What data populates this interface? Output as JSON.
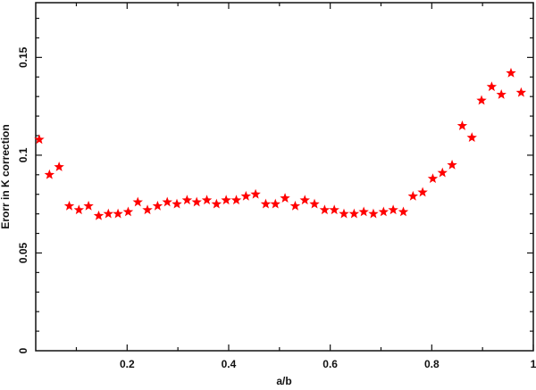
{
  "chart_data": {
    "type": "scatter",
    "title": "",
    "xlabel": "a/b",
    "ylabel": "Erorr in K correction",
    "xlim": [
      0.02,
      1.0
    ],
    "ylim": [
      0,
      0.178
    ],
    "x_ticks": [
      0.2,
      0.4,
      0.6,
      0.8,
      1
    ],
    "x_tick_labels": [
      "0.2",
      "0.4",
      "0.6",
      "0.8",
      "1"
    ],
    "y_ticks": [
      0,
      0.05,
      0.1,
      0.15
    ],
    "y_tick_labels": [
      "0",
      "0.05",
      "0.1",
      "0.15"
    ],
    "grid": false,
    "marker": "star",
    "color": "#ff0000",
    "series": [
      {
        "x": [
          0.027,
          0.047,
          0.066,
          0.086,
          0.105,
          0.124,
          0.144,
          0.163,
          0.182,
          0.202,
          0.221,
          0.24,
          0.26,
          0.279,
          0.298,
          0.318,
          0.337,
          0.357,
          0.376,
          0.395,
          0.415,
          0.434,
          0.453,
          0.473,
          0.492,
          0.511,
          0.531,
          0.55,
          0.569,
          0.589,
          0.608,
          0.627,
          0.647,
          0.666,
          0.685,
          0.705,
          0.724,
          0.744,
          0.763,
          0.782,
          0.802,
          0.821,
          0.84,
          0.86,
          0.879,
          0.898,
          0.918,
          0.937,
          0.956,
          0.976
        ],
        "y": [
          0.108,
          0.09,
          0.094,
          0.074,
          0.072,
          0.074,
          0.069,
          0.07,
          0.07,
          0.071,
          0.076,
          0.072,
          0.074,
          0.076,
          0.075,
          0.077,
          0.076,
          0.077,
          0.075,
          0.077,
          0.077,
          0.079,
          0.08,
          0.075,
          0.075,
          0.078,
          0.074,
          0.077,
          0.075,
          0.072,
          0.072,
          0.07,
          0.07,
          0.071,
          0.07,
          0.071,
          0.072,
          0.071,
          0.079,
          0.081,
          0.088,
          0.091,
          0.095,
          0.115,
          0.109,
          0.128,
          0.135,
          0.131,
          0.142,
          0.132
        ]
      }
    ]
  }
}
